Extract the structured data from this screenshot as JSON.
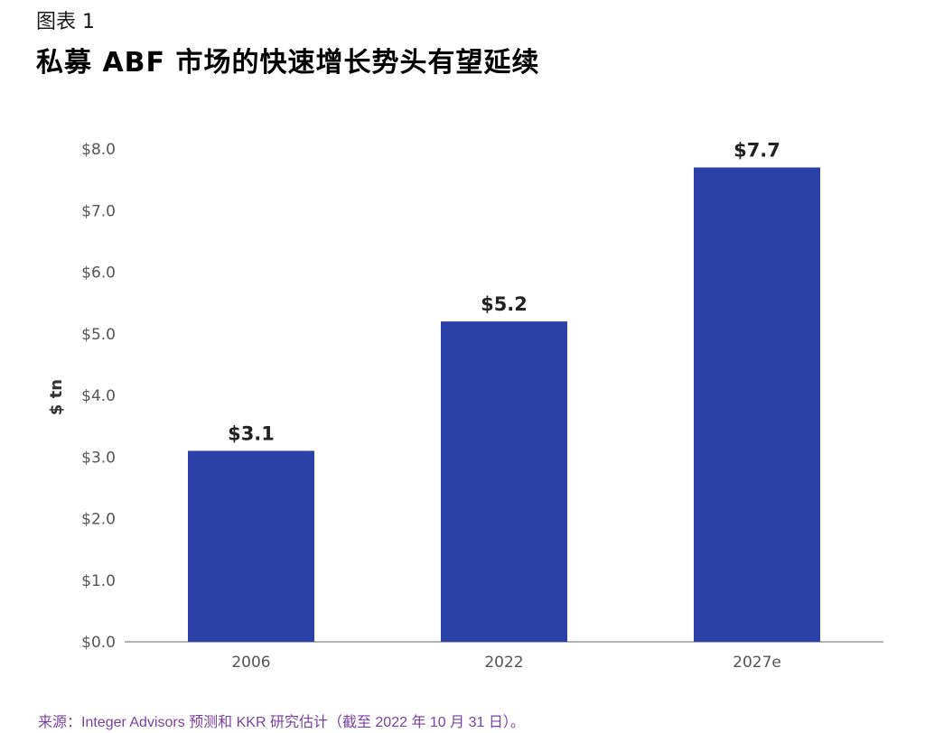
{
  "header": {
    "figure_label": "图表 1",
    "title": "私募 ABF 市场的快速增长势头有望延续"
  },
  "chart_data": {
    "type": "bar",
    "categories": [
      "2006",
      "2022",
      "2027e"
    ],
    "values": [
      3.1,
      5.2,
      7.7
    ],
    "value_labels": [
      "$3.1",
      "$5.2",
      "$7.7"
    ],
    "ylabel": "$ tn",
    "xlabel": "",
    "ylim": [
      0,
      8
    ],
    "y_ticks": [
      0,
      1,
      2,
      3,
      4,
      5,
      6,
      7,
      8
    ],
    "y_tick_labels": [
      "$0.0",
      "$1.0",
      "$2.0",
      "$3.0",
      "$4.0",
      "$5.0",
      "$6.0",
      "$7.0",
      "$8.0"
    ],
    "grid": false,
    "legend": "none",
    "colors": {
      "bar": "#2b41a7",
      "axis": "#999999",
      "tick_text": "#555555",
      "value_text": "#222222"
    }
  },
  "footer": {
    "source": "来源：Integer Advisors 预测和 KKR 研究估计（截至 2022 年 10 月 31 日）。"
  }
}
